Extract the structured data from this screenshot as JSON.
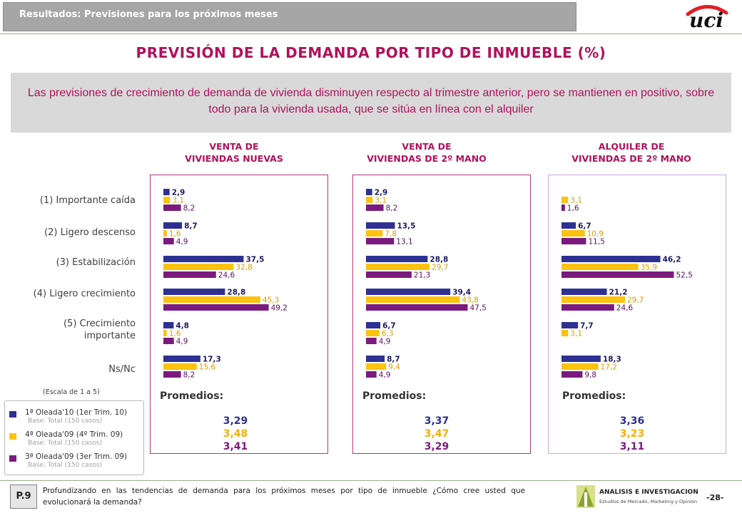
{
  "header": {
    "section_title": "Resultados: Previsiones para los próximos meses"
  },
  "logo": {
    "text": "uci"
  },
  "main_title": "PREVISIÓN DE LA DEMANDA POR TIPO DE INMUEBLE (%)",
  "summary": "Las previsiones de crecimiento de demanda de vivienda disminuyen respecto al trimestre anterior, pero se mantienen en positivo, sobre todo para la vivienda usada, que se sitúa en línea con el alquiler",
  "categories": [
    "(1) Importante caída",
    "(2) Ligero descenso",
    "(3) Estabilización",
    "(4) Ligero crecimiento",
    "(5) Crecimiento importante",
    "Ns/Nc"
  ],
  "scale_note": "(Escala de 1 a 5)",
  "promedios_label": "Promedios:",
  "legend": [
    {
      "name": "1ª Oleada'10 (1er Trim. 10)",
      "base": "Base: Total (150 casos)",
      "color": "#2e3192"
    },
    {
      "name": "4ª Oleada'09 (4º Trim. 09)",
      "base": "Base: Total (150 casos)",
      "color": "#ffc20e"
    },
    {
      "name": "3ª Oleada'09 (3er Trim. 09)",
      "base": "Base: Total (150 casos)",
      "color": "#7b1a7e"
    }
  ],
  "chart_data": [
    {
      "type": "bar",
      "title_line1": "VENTA DE",
      "title_line2": "VIVIENDAS NUEVAS",
      "categories": [
        "(1) Importante caída",
        "(2) Ligero descenso",
        "(3) Estabilización",
        "(4) Ligero crecimiento",
        "(5) Crecimiento importante",
        "Ns/Nc"
      ],
      "series": [
        {
          "name": "1ª Oleada'10 (1er Trim. 10)",
          "values": [
            2.9,
            8.7,
            37.5,
            28.8,
            4.8,
            17.3
          ],
          "labels": [
            "2,9",
            "8,7",
            "37,5",
            "28,8",
            "4,8",
            "17,3"
          ]
        },
        {
          "name": "4ª Oleada'09 (4º Trim. 09)",
          "values": [
            3.1,
            1.6,
            32.8,
            45.3,
            1.6,
            15.6
          ],
          "labels": [
            "3,1",
            "1,6",
            "32,8",
            "45,3",
            "1,6",
            "15,6"
          ]
        },
        {
          "name": "3ª Oleada'09 (3er Trim. 09)",
          "values": [
            8.2,
            4.9,
            24.6,
            49.2,
            4.9,
            8.2
          ],
          "labels": [
            "8,2",
            "4,9",
            "24,6",
            "49,2",
            "4,9",
            "8,2"
          ]
        }
      ],
      "xlim": [
        0,
        60
      ],
      "promedios": [
        "3,29",
        "3,48",
        "3,41"
      ]
    },
    {
      "type": "bar",
      "title_line1": "VENTA DE",
      "title_line2": "VIVIENDAS DE 2º MANO",
      "categories": [
        "(1) Importante caída",
        "(2) Ligero descenso",
        "(3) Estabilización",
        "(4) Ligero crecimiento",
        "(5) Crecimiento importante",
        "Ns/Nc"
      ],
      "series": [
        {
          "name": "1ª Oleada'10 (1er Trim. 10)",
          "values": [
            2.9,
            13.5,
            28.8,
            39.4,
            6.7,
            8.7
          ],
          "labels": [
            "2,9",
            "13,5",
            "28,8",
            "39,4",
            "6,7",
            "8,7"
          ]
        },
        {
          "name": "4ª Oleada'09 (4º Trim. 09)",
          "values": [
            3.1,
            7.8,
            29.7,
            43.8,
            6.3,
            9.4
          ],
          "labels": [
            "3,1",
            "7,8",
            "29,7",
            "43,8",
            "6,3",
            "9,4"
          ]
        },
        {
          "name": "3ª Oleada'09 (3er Trim. 09)",
          "values": [
            8.2,
            13.1,
            21.3,
            47.5,
            4.9,
            4.9
          ],
          "labels": [
            "8,2",
            "13,1",
            "21,3",
            "47,5",
            "4,9",
            "4,9"
          ]
        }
      ],
      "xlim": [
        0,
        60
      ],
      "promedios": [
        "3,37",
        "3,47",
        "3,29"
      ]
    },
    {
      "type": "bar",
      "title_line1": "ALQUILER DE",
      "title_line2": "VIVIENDAS DE 2º MANO",
      "categories": [
        "(1) Importante caída",
        "(2) Ligero descenso",
        "(3) Estabilización",
        "(4) Ligero crecimiento",
        "(5) Crecimiento importante",
        "Ns/Nc"
      ],
      "series": [
        {
          "name": "1ª Oleada'10 (1er Trim. 10)",
          "values": [
            0,
            6.7,
            46.2,
            21.2,
            7.7,
            18.3
          ],
          "labels": [
            "",
            "6,7",
            "46,2",
            "21,2",
            "7,7",
            "18,3"
          ]
        },
        {
          "name": "4ª Oleada'09 (4º Trim. 09)",
          "values": [
            3.1,
            10.9,
            35.9,
            29.7,
            3.1,
            17.2
          ],
          "labels": [
            "3,1",
            "10,9",
            "35,9",
            "29,7",
            "3,1",
            "17,2"
          ]
        },
        {
          "name": "3ª Oleada'09 (3er Trim. 09)",
          "values": [
            1.6,
            11.5,
            52.5,
            24.6,
            0,
            9.8
          ],
          "labels": [
            "1,6",
            "11,5",
            "52,5",
            "24,6",
            "",
            "9,8"
          ]
        }
      ],
      "xlim": [
        0,
        60
      ],
      "promedios": [
        "3,36",
        "3,23",
        "3,11"
      ]
    }
  ],
  "footer": {
    "question_id": "P.9",
    "question": "Profundizando en las tendencias de demanda para los próximos meses por tipo de inmueble ¿Cómo cree usted que evolucionará la demanda?",
    "brand_name": "ANALISIS E INVESTIGACION",
    "brand_tagline": "Estudios de Mercado, Marketing y Opinión",
    "page_number": "-28-"
  }
}
